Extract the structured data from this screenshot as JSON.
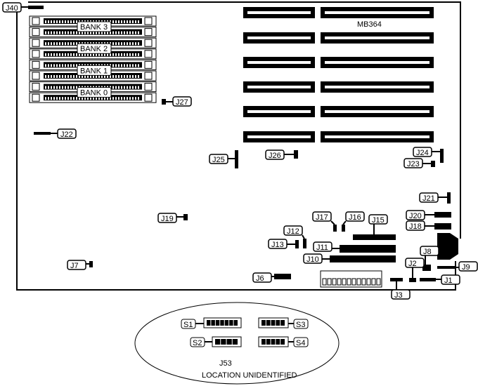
{
  "board_label": "MB364",
  "banks": [
    "BANK 3",
    "BANK 2",
    "BANK 1",
    "BANK 0"
  ],
  "jumpers": [
    "J40",
    "J27",
    "J22",
    "J25",
    "J26",
    "J24",
    "J23",
    "J21",
    "J20",
    "J18",
    "J19",
    "J17",
    "J16",
    "J15",
    "J12",
    "J13",
    "J11",
    "J10",
    "J8",
    "J9",
    "J2",
    "J3",
    "J1",
    "J6",
    "J7"
  ],
  "switches": [
    "S1",
    "S2",
    "S3",
    "S4"
  ],
  "inset": {
    "title": "J53",
    "note": "LOCATION UNIDENTIFIED"
  }
}
